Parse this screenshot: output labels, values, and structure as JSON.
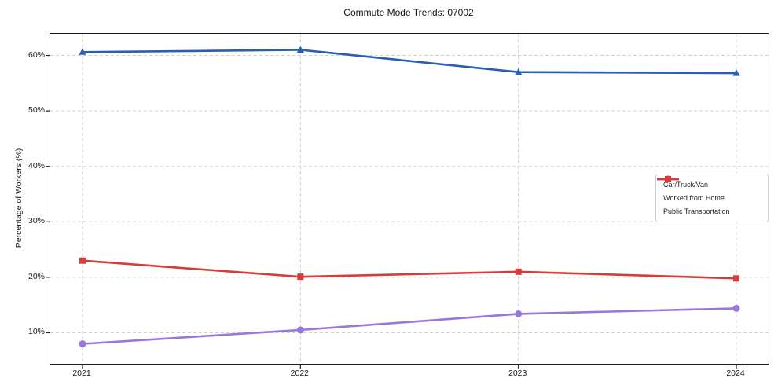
{
  "title": "Commute Mode Trends: 07002",
  "colors": {
    "car_truck_van": "#2a5db4",
    "worked_from_home": "#9878d8",
    "public_transportation": "#d93b3b",
    "grid": "#cfcfcf",
    "frame": "#1c1c1c"
  },
  "chart_data": {
    "type": "line",
    "title": "Commute Mode Trends: 07002",
    "xlabel": "",
    "ylabel": "Percentage of Workers (%)",
    "x": [
      2021,
      2022,
      2023,
      2024
    ],
    "xtick_labels": [
      "2021",
      "2022",
      "2023",
      "2024"
    ],
    "yticks": [
      10,
      20,
      30,
      40,
      50,
      60
    ],
    "ytick_labels": [
      "10%",
      "20%",
      "30%",
      "40%",
      "50%",
      "60%"
    ],
    "ylim": [
      4.4,
      63.9
    ],
    "grid": true,
    "legend_position": "center right",
    "series": [
      {
        "name": "Car/Truck/Van",
        "color": "#2a5db4",
        "marker": "triangle",
        "values": [
          60.6,
          61.0,
          57.0,
          56.8
        ]
      },
      {
        "name": "Worked from Home",
        "color": "#9878d8",
        "marker": "circle",
        "values": [
          8.0,
          10.5,
          13.4,
          14.4
        ]
      },
      {
        "name": "Public Transportation",
        "color": "#d93b3b",
        "marker": "square",
        "values": [
          23.0,
          20.1,
          21.0,
          19.8
        ]
      }
    ]
  }
}
